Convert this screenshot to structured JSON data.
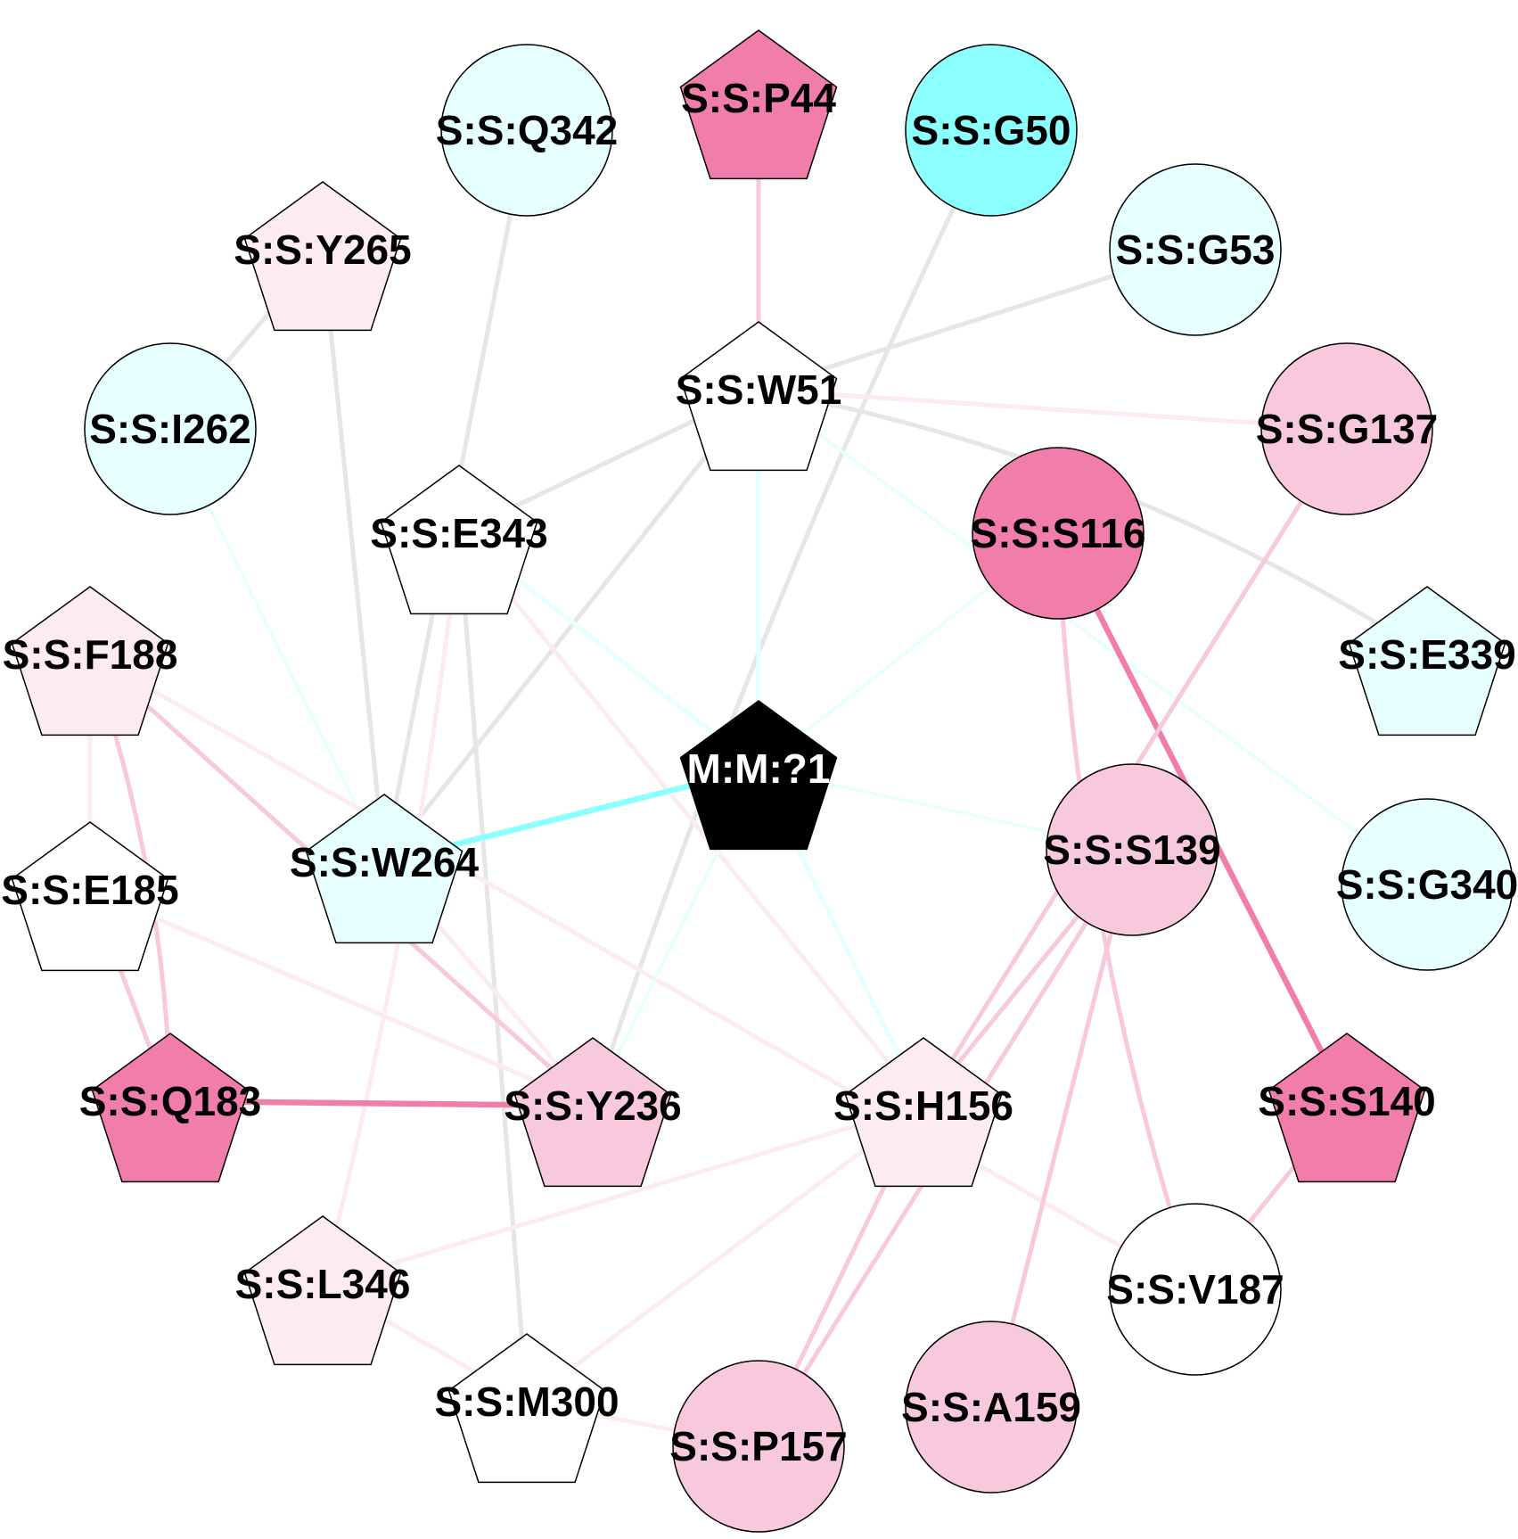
{
  "graph": {
    "colors": {
      "grey": "#e6e6e6",
      "cyan": "#8cffff",
      "cyan_light": "#e6ffff",
      "pink_strong": "#f07daa",
      "pink_mid": "#f8c8dc",
      "pink_light": "#fcebf2",
      "white": "#ffffff",
      "black": "#000000"
    },
    "nodes": [
      {
        "id": "P44",
        "label": "S:S:P44",
        "shape": "pentagon",
        "fill": "#f07daa"
      },
      {
        "id": "Q342",
        "label": "S:S:Q342",
        "shape": "circle",
        "fill": "#e6ffff"
      },
      {
        "id": "G50",
        "label": "S:S:G50",
        "shape": "circle",
        "fill": "#8cffff"
      },
      {
        "id": "Y265",
        "label": "S:S:Y265",
        "shape": "pentagon",
        "fill": "#fcebf2"
      },
      {
        "id": "G53",
        "label": "S:S:G53",
        "shape": "circle",
        "fill": "#e6ffff"
      },
      {
        "id": "W51",
        "label": "S:S:W51",
        "shape": "pentagon",
        "fill": "#ffffff"
      },
      {
        "id": "I262",
        "label": "S:S:I262",
        "shape": "circle",
        "fill": "#e6ffff"
      },
      {
        "id": "G137",
        "label": "S:S:G137",
        "shape": "circle",
        "fill": "#f8c8dc"
      },
      {
        "id": "E343",
        "label": "S:S:E343",
        "shape": "pentagon",
        "fill": "#ffffff"
      },
      {
        "id": "S116",
        "label": "S:S:S116",
        "shape": "circle",
        "fill": "#f07daa"
      },
      {
        "id": "F188",
        "label": "S:S:F188",
        "shape": "pentagon",
        "fill": "#fcebf2"
      },
      {
        "id": "E339",
        "label": "S:S:E339",
        "shape": "pentagon",
        "fill": "#e6ffff"
      },
      {
        "id": "M1",
        "label": "M:M:?1",
        "shape": "pentagon",
        "fill": "#000000"
      },
      {
        "id": "W264",
        "label": "S:S:W264",
        "shape": "pentagon",
        "fill": "#e6ffff"
      },
      {
        "id": "S139",
        "label": "S:S:S139",
        "shape": "circle",
        "fill": "#f8c8dc"
      },
      {
        "id": "E185",
        "label": "S:S:E185",
        "shape": "pentagon",
        "fill": "#ffffff"
      },
      {
        "id": "G340",
        "label": "S:S:G340",
        "shape": "circle",
        "fill": "#e6ffff"
      },
      {
        "id": "Q183",
        "label": "S:S:Q183",
        "shape": "pentagon",
        "fill": "#f07daa"
      },
      {
        "id": "Y236",
        "label": "S:S:Y236",
        "shape": "pentagon",
        "fill": "#f8c8dc"
      },
      {
        "id": "H156",
        "label": "S:S:H156",
        "shape": "pentagon",
        "fill": "#fcebf2"
      },
      {
        "id": "S140",
        "label": "S:S:S140",
        "shape": "pentagon",
        "fill": "#f07daa"
      },
      {
        "id": "L346",
        "label": "S:S:L346",
        "shape": "pentagon",
        "fill": "#fcebf2"
      },
      {
        "id": "V187",
        "label": "S:S:V187",
        "shape": "circle",
        "fill": "#ffffff"
      },
      {
        "id": "M300",
        "label": "S:S:M300",
        "shape": "pentagon",
        "fill": "#ffffff"
      },
      {
        "id": "A159",
        "label": "S:S:A159",
        "shape": "circle",
        "fill": "#f8c8dc"
      },
      {
        "id": "P157",
        "label": "S:S:P157",
        "shape": "circle",
        "fill": "#f8c8dc"
      }
    ],
    "edges": [
      {
        "from": "P44",
        "to": "W51",
        "color": "#f8c8dc",
        "weight": "medium"
      },
      {
        "from": "G50",
        "to": "Y236",
        "color": "#e6e6e6",
        "weight": "medium"
      },
      {
        "from": "G53",
        "to": "W51",
        "color": "#e6e6e6",
        "weight": "medium"
      },
      {
        "from": "Q342",
        "to": "W264",
        "color": "#e6e6e6",
        "weight": "medium"
      },
      {
        "from": "Y265",
        "to": "I262",
        "color": "#e6e6e6",
        "weight": "medium"
      },
      {
        "from": "Y265",
        "to": "W264",
        "color": "#e6e6e6",
        "weight": "medium"
      },
      {
        "from": "W51",
        "to": "E343",
        "color": "#e6e6e6",
        "weight": "medium"
      },
      {
        "from": "W51",
        "to": "W264",
        "color": "#e6e6e6",
        "weight": "medium"
      },
      {
        "from": "W51",
        "to": "G137",
        "color": "#fcebf2",
        "weight": "medium"
      },
      {
        "from": "W51",
        "to": "E339",
        "color": "#e6e6e6",
        "weight": "medium"
      },
      {
        "from": "W51",
        "to": "M1",
        "color": "#e6ffff",
        "weight": "medium"
      },
      {
        "from": "W51",
        "to": "G340",
        "color": "#e6ffff",
        "weight": "thin"
      },
      {
        "from": "I262",
        "to": "W264",
        "color": "#e6ffff",
        "weight": "thin"
      },
      {
        "from": "E343",
        "to": "M1",
        "color": "#e6ffff",
        "weight": "medium"
      },
      {
        "from": "E343",
        "to": "M300",
        "color": "#e6e6e6",
        "weight": "medium"
      },
      {
        "from": "E343",
        "to": "L346",
        "color": "#fcebf2",
        "weight": "medium"
      },
      {
        "from": "E343",
        "to": "H156",
        "color": "#fcebf2",
        "weight": "medium"
      },
      {
        "from": "S116",
        "to": "M1",
        "color": "#e6ffff",
        "weight": "thin"
      },
      {
        "from": "S116",
        "to": "S140",
        "color": "#f07daa",
        "weight": "thick"
      },
      {
        "from": "S116",
        "to": "V187",
        "color": "#f8c8dc",
        "weight": "medium"
      },
      {
        "from": "G137",
        "to": "H156",
        "color": "#f8c8dc",
        "weight": "medium"
      },
      {
        "from": "F188",
        "to": "E185",
        "color": "#fcebf2",
        "weight": "medium"
      },
      {
        "from": "F188",
        "to": "Q183",
        "color": "#f8c8dc",
        "weight": "medium"
      },
      {
        "from": "F188",
        "to": "Y236",
        "color": "#f8c8dc",
        "weight": "medium"
      },
      {
        "from": "F188",
        "to": "V187",
        "color": "#fcebf2",
        "weight": "medium"
      },
      {
        "from": "M1",
        "to": "W264",
        "color": "#8cffff",
        "weight": "thick"
      },
      {
        "from": "M1",
        "to": "S139",
        "color": "#e6ffff",
        "weight": "thin"
      },
      {
        "from": "M1",
        "to": "Y236",
        "color": "#e6ffff",
        "weight": "thin"
      },
      {
        "from": "M1",
        "to": "H156",
        "color": "#e6ffff",
        "weight": "medium"
      },
      {
        "from": "W264",
        "to": "Y236",
        "color": "#fcebf2",
        "weight": "medium"
      },
      {
        "from": "E185",
        "to": "Q183",
        "color": "#f8c8dc",
        "weight": "medium"
      },
      {
        "from": "E185",
        "to": "Y236",
        "color": "#fcebf2",
        "weight": "medium"
      },
      {
        "from": "Q183",
        "to": "Y236",
        "color": "#f07daa",
        "weight": "thick"
      },
      {
        "from": "S139",
        "to": "H156",
        "color": "#f8c8dc",
        "weight": "medium"
      },
      {
        "from": "S139",
        "to": "P157",
        "color": "#f8c8dc",
        "weight": "medium"
      },
      {
        "from": "S139",
        "to": "A159",
        "color": "#f8c8dc",
        "weight": "medium"
      },
      {
        "from": "H156",
        "to": "L346",
        "color": "#fcebf2",
        "weight": "medium"
      },
      {
        "from": "H156",
        "to": "M300",
        "color": "#fcebf2",
        "weight": "medium"
      },
      {
        "from": "H156",
        "to": "P157",
        "color": "#f8c8dc",
        "weight": "medium"
      },
      {
        "from": "S140",
        "to": "V187",
        "color": "#f8c8dc",
        "weight": "medium"
      },
      {
        "from": "L346",
        "to": "M300",
        "color": "#fcebf2",
        "weight": "medium"
      },
      {
        "from": "M300",
        "to": "P157",
        "color": "#fcebf2",
        "weight": "medium"
      }
    ]
  }
}
